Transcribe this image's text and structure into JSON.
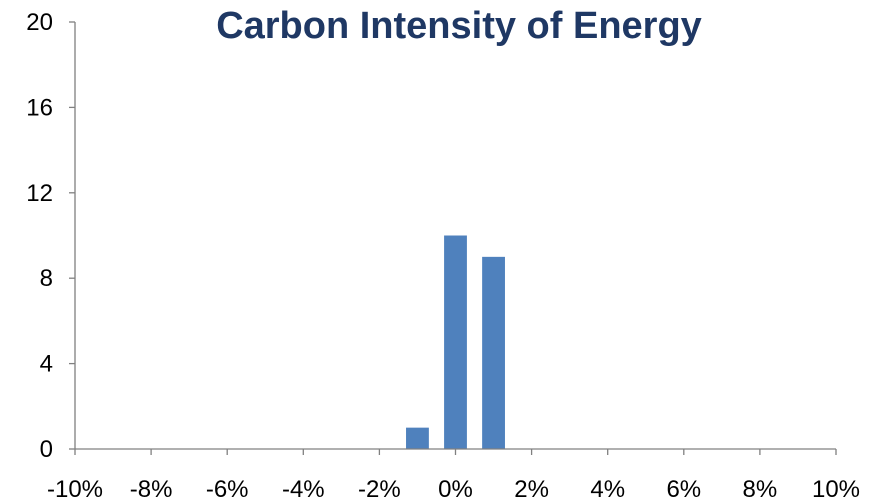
{
  "chart_data": {
    "type": "bar",
    "title": "Carbon Intensity of Energy",
    "xlabel": "",
    "ylabel": "",
    "x_ticks": [
      "-10%",
      "-8%",
      "-6%",
      "-4%",
      "-2%",
      "0%",
      "2%",
      "4%",
      "6%",
      "8%",
      "10%"
    ],
    "y_ticks": [
      "0",
      "4",
      "8",
      "12",
      "16",
      "20"
    ],
    "ylim": [
      0,
      20
    ],
    "xlim": [
      -10,
      10
    ],
    "bars": [
      {
        "x": -1,
        "value": 1
      },
      {
        "x": 0,
        "value": 10
      },
      {
        "x": 1,
        "value": 9
      }
    ],
    "bar_width": 0.6,
    "grid": false,
    "legend": "none",
    "colors": {
      "bar": "#4f81bd",
      "title": "#1f3864",
      "axis": "#808080"
    }
  }
}
